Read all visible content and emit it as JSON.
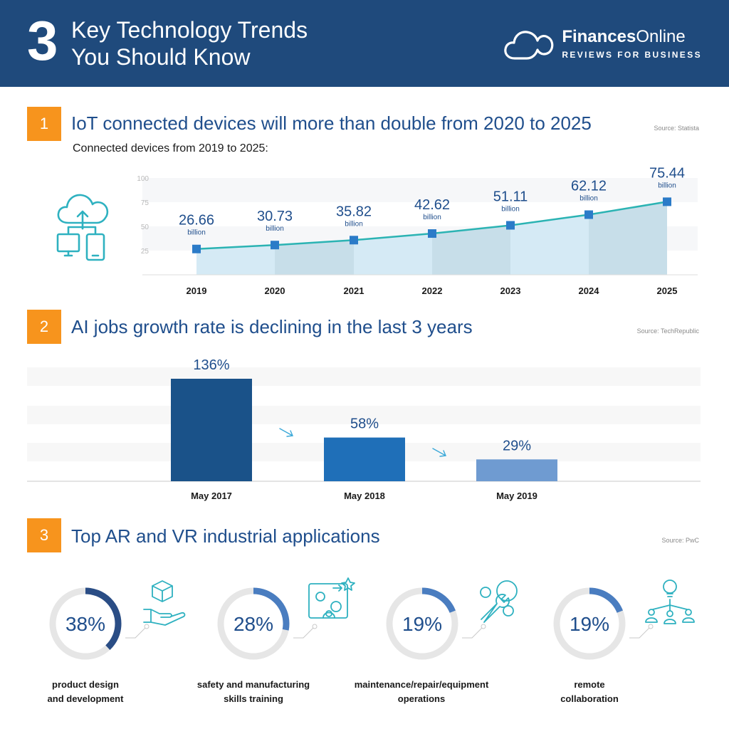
{
  "header": {
    "number": "3",
    "title_line1": "Key Technology Trends",
    "title_line2": "You Should Know",
    "brand_name_bold": "Finances",
    "brand_name_rest": "Online",
    "brand_tagline": "REVIEWS FOR BUSINESS"
  },
  "section1": {
    "badge": "1",
    "title": "IoT connected devices will more than double from 2020 to 2025",
    "source": "Source: Statista",
    "subtitle": "Connected devices from 2019 to 2025:",
    "unit_label": "billion"
  },
  "section2": {
    "badge": "2",
    "title": "AI jobs growth rate is declining in the last 3 years",
    "source": "Source: TechRepublic"
  },
  "section3": {
    "badge": "3",
    "title": "Top AR and VR industrial applications",
    "source": "Source: PwC"
  },
  "colors": {
    "header_bg": "#1f4a7c",
    "accent_orange": "#f7941d",
    "title_blue": "#1f4e8c",
    "line_teal": "#2bb3b3",
    "marker_blue": "#2b7bc8",
    "bar_dark": "#1a5289",
    "bar_mid": "#1f6fb8",
    "bar_light": "#6f9bd1",
    "ring_track": "#e6e6e6",
    "ring_dark": "#2a4d85",
    "ring_light": "#4a7dc0"
  },
  "chart_data": [
    {
      "type": "area",
      "categories": [
        "2019",
        "2020",
        "2021",
        "2022",
        "2023",
        "2024",
        "2025"
      ],
      "series": [
        {
          "values": [
            26.66,
            30.73,
            35.82,
            42.62,
            51.11,
            62.12,
            75.44
          ]
        }
      ],
      "value_labels": [
        "26.66",
        "30.73",
        "35.82",
        "42.62",
        "51.11",
        "62.12",
        "75.44"
      ],
      "yticks": [
        25,
        50,
        75,
        100
      ],
      "ylim": [
        0,
        100
      ],
      "grid": true
    },
    {
      "type": "bar",
      "categories": [
        "May 2017",
        "May 2018",
        "May 2019"
      ],
      "values": [
        136,
        58,
        29
      ],
      "value_labels": [
        "136%",
        "58%",
        "29%"
      ]
    },
    {
      "type": "pie",
      "categories": [
        "product design and development",
        "safety and manufacturing skills training",
        "maintenance/repair/equipment operations",
        "remote collaboration"
      ],
      "label_lines": [
        [
          "product design",
          "and development"
        ],
        [
          "safety and manufacturing",
          "skills training"
        ],
        [
          "maintenance/repair/equipment",
          "operations"
        ],
        [
          "remote",
          "collaboration"
        ]
      ],
      "values": [
        38,
        28,
        19,
        19
      ],
      "value_labels": [
        "38%",
        "28%",
        "19%",
        "19%"
      ],
      "icons": [
        "cube-hand-icon",
        "gears-person-icon",
        "wrench-gears-icon",
        "lightbulb-team-icon"
      ]
    }
  ]
}
